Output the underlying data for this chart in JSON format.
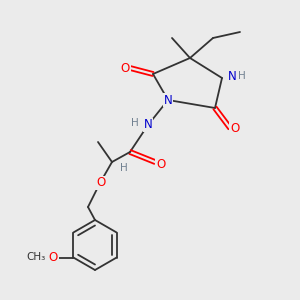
{
  "bg_color": "#ebebeb",
  "atom_colors": {
    "O": "#ff0000",
    "N": "#0000cd",
    "C": "#333333",
    "H": "#708090"
  },
  "bond_color": "#333333",
  "figsize": [
    3.0,
    3.0
  ],
  "dpi": 100
}
